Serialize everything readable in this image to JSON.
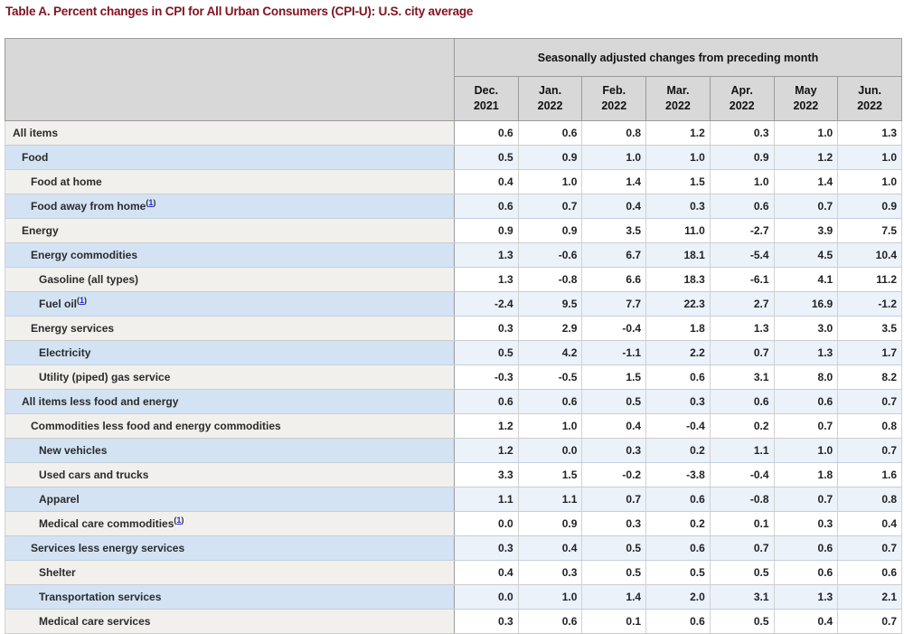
{
  "title": "Table A. Percent changes in CPI for All Urban Consumers (CPI-U): U.S. city average",
  "table": {
    "group_header": "Seasonally adjusted changes from preceding month",
    "columns": [
      {
        "month": "Dec.",
        "year": "2021"
      },
      {
        "month": "Jan.",
        "year": "2022"
      },
      {
        "month": "Feb.",
        "year": "2022"
      },
      {
        "month": "Mar.",
        "year": "2022"
      },
      {
        "month": "Apr.",
        "year": "2022"
      },
      {
        "month": "May",
        "year": "2022"
      },
      {
        "month": "Jun.",
        "year": "2022"
      }
    ],
    "rows": [
      {
        "label": "All items",
        "indent": 0,
        "footnote": "",
        "values": [
          "0.6",
          "0.6",
          "0.8",
          "1.2",
          "0.3",
          "1.0",
          "1.3"
        ]
      },
      {
        "label": "Food",
        "indent": 1,
        "footnote": "",
        "values": [
          "0.5",
          "0.9",
          "1.0",
          "1.0",
          "0.9",
          "1.2",
          "1.0"
        ]
      },
      {
        "label": "Food at home",
        "indent": 2,
        "footnote": "",
        "values": [
          "0.4",
          "1.0",
          "1.4",
          "1.5",
          "1.0",
          "1.4",
          "1.0"
        ]
      },
      {
        "label": "Food away from home",
        "indent": 2,
        "footnote": "1",
        "values": [
          "0.6",
          "0.7",
          "0.4",
          "0.3",
          "0.6",
          "0.7",
          "0.9"
        ]
      },
      {
        "label": "Energy",
        "indent": 1,
        "footnote": "",
        "values": [
          "0.9",
          "0.9",
          "3.5",
          "11.0",
          "-2.7",
          "3.9",
          "7.5"
        ]
      },
      {
        "label": "Energy commodities",
        "indent": 2,
        "footnote": "",
        "values": [
          "1.3",
          "-0.6",
          "6.7",
          "18.1",
          "-5.4",
          "4.5",
          "10.4"
        ]
      },
      {
        "label": "Gasoline (all types)",
        "indent": 3,
        "footnote": "",
        "values": [
          "1.3",
          "-0.8",
          "6.6",
          "18.3",
          "-6.1",
          "4.1",
          "11.2"
        ]
      },
      {
        "label": "Fuel oil",
        "indent": 3,
        "footnote": "1",
        "values": [
          "-2.4",
          "9.5",
          "7.7",
          "22.3",
          "2.7",
          "16.9",
          "-1.2"
        ]
      },
      {
        "label": "Energy services",
        "indent": 2,
        "footnote": "",
        "values": [
          "0.3",
          "2.9",
          "-0.4",
          "1.8",
          "1.3",
          "3.0",
          "3.5"
        ]
      },
      {
        "label": "Electricity",
        "indent": 3,
        "footnote": "",
        "values": [
          "0.5",
          "4.2",
          "-1.1",
          "2.2",
          "0.7",
          "1.3",
          "1.7"
        ]
      },
      {
        "label": "Utility (piped) gas service",
        "indent": 3,
        "footnote": "",
        "values": [
          "-0.3",
          "-0.5",
          "1.5",
          "0.6",
          "3.1",
          "8.0",
          "8.2"
        ]
      },
      {
        "label": "All items less food and energy",
        "indent": 1,
        "footnote": "",
        "values": [
          "0.6",
          "0.6",
          "0.5",
          "0.3",
          "0.6",
          "0.6",
          "0.7"
        ]
      },
      {
        "label": "Commodities less food and energy commodities",
        "indent": 2,
        "footnote": "",
        "values": [
          "1.2",
          "1.0",
          "0.4",
          "-0.4",
          "0.2",
          "0.7",
          "0.8"
        ]
      },
      {
        "label": "New vehicles",
        "indent": 3,
        "footnote": "",
        "values": [
          "1.2",
          "0.0",
          "0.3",
          "0.2",
          "1.1",
          "1.0",
          "0.7"
        ]
      },
      {
        "label": "Used cars and trucks",
        "indent": 3,
        "footnote": "",
        "values": [
          "3.3",
          "1.5",
          "-0.2",
          "-3.8",
          "-0.4",
          "1.8",
          "1.6"
        ]
      },
      {
        "label": "Apparel",
        "indent": 3,
        "footnote": "",
        "values": [
          "1.1",
          "1.1",
          "0.7",
          "0.6",
          "-0.8",
          "0.7",
          "0.8"
        ]
      },
      {
        "label": "Medical care commodities",
        "indent": 3,
        "footnote": "1",
        "values": [
          "0.0",
          "0.9",
          "0.3",
          "0.2",
          "0.1",
          "0.3",
          "0.4"
        ]
      },
      {
        "label": "Services less energy services",
        "indent": 2,
        "footnote": "",
        "values": [
          "0.3",
          "0.4",
          "0.5",
          "0.6",
          "0.7",
          "0.6",
          "0.7"
        ]
      },
      {
        "label": "Shelter",
        "indent": 3,
        "footnote": "",
        "values": [
          "0.4",
          "0.3",
          "0.5",
          "0.5",
          "0.5",
          "0.6",
          "0.6"
        ]
      },
      {
        "label": "Transportation services",
        "indent": 3,
        "footnote": "",
        "values": [
          "0.0",
          "1.0",
          "1.4",
          "2.0",
          "3.1",
          "1.3",
          "2.1"
        ]
      },
      {
        "label": "Medical care services",
        "indent": 3,
        "footnote": "",
        "values": [
          "0.3",
          "0.6",
          "0.1",
          "0.6",
          "0.5",
          "0.4",
          "0.7"
        ]
      }
    ]
  },
  "colors": {
    "title_text": "#821323",
    "header_bg": "#d8d8d8",
    "row_alt_stub_bg": "#d3e3f4",
    "row_alt_data_bg": "#ebf2fa",
    "row_stub_bg": "#f1f0ed",
    "footnote_link": "#2929d6",
    "outer_border": "#8f8f8f"
  }
}
